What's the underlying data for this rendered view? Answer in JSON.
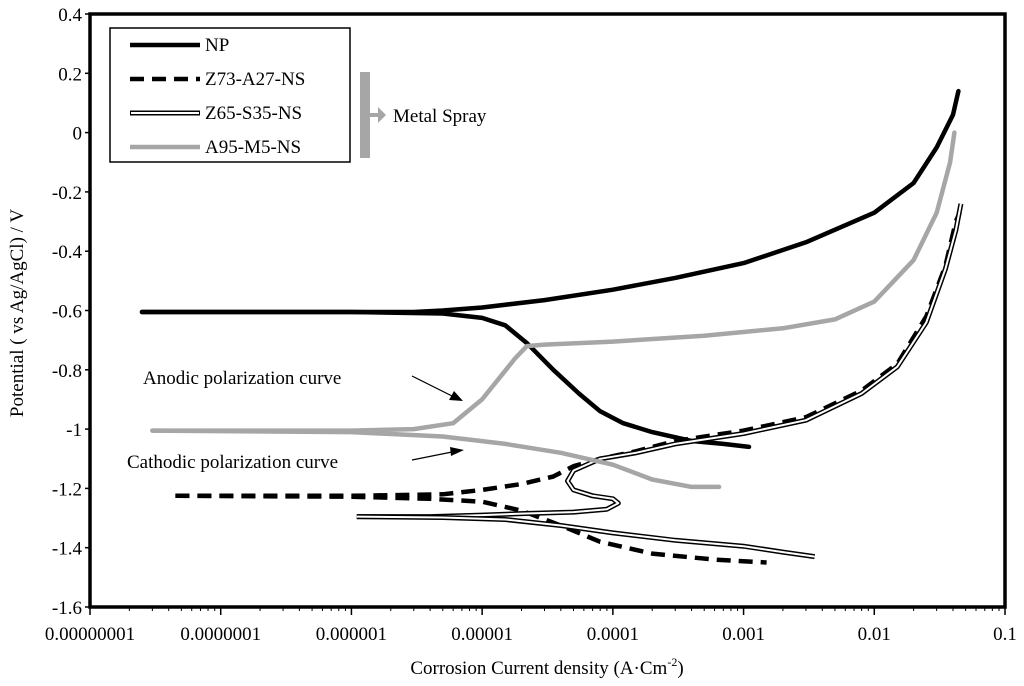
{
  "chart_data": {
    "type": "line",
    "xscale": "log",
    "xlabel": "Corrosion Current density (A·Cm",
    "xlabel_sup": "-2",
    "xlabel_close": ")",
    "ylabel": "Potential ( vs Ag/AgCl) / V",
    "xlim": [
      1e-08,
      0.1
    ],
    "ylim": [
      -1.6,
      0.4
    ],
    "x_ticks": [
      1e-08,
      1e-07,
      1e-06,
      1e-05,
      0.0001,
      0.001,
      0.01,
      0.1
    ],
    "x_tick_labels": [
      "0.00000001",
      "0.0000001",
      "0.000001",
      "0.00001",
      "0.0001",
      "0.001",
      "0.01",
      "0.1"
    ],
    "y_ticks": [
      0.4,
      0.2,
      0,
      -0.2,
      -0.4,
      -0.6,
      -0.8,
      -1,
      -1.2,
      -1.4,
      -1.6
    ],
    "y_tick_labels": [
      "0.4",
      "0.2",
      "0",
      "-0.2",
      "-0.4",
      "-0.6",
      "-0.8",
      "-1",
      "-1.2",
      "-1.4",
      "-1.6"
    ],
    "grid": false,
    "legend_position": "top-left",
    "series": [
      {
        "name": "NP",
        "color": "#000000",
        "style": "solid",
        "points": [
          [
            2.5e-08,
            -0.605
          ],
          [
            1e-07,
            -0.605
          ],
          [
            1e-06,
            -0.605
          ],
          [
            3e-06,
            -0.605
          ],
          [
            5e-06,
            -0.6
          ],
          [
            1e-05,
            -0.59
          ],
          [
            3e-05,
            -0.565
          ],
          [
            0.0001,
            -0.53
          ],
          [
            0.0003,
            -0.49
          ],
          [
            0.001,
            -0.44
          ],
          [
            0.003,
            -0.37
          ],
          [
            0.01,
            -0.27
          ],
          [
            0.02,
            -0.17
          ],
          [
            0.03,
            -0.05
          ],
          [
            0.04,
            0.06
          ],
          [
            0.044,
            0.14
          ]
        ],
        "points_b": [
          [
            2.5e-08,
            -0.605
          ],
          [
            1e-06,
            -0.605
          ],
          [
            5e-06,
            -0.61
          ],
          [
            1e-05,
            -0.625
          ],
          [
            1.5e-05,
            -0.65
          ],
          [
            2.2e-05,
            -0.71
          ],
          [
            3.5e-05,
            -0.8
          ],
          [
            5.5e-05,
            -0.88
          ],
          [
            8e-05,
            -0.94
          ],
          [
            0.00012,
            -0.98
          ],
          [
            0.0002,
            -1.01
          ],
          [
            0.0004,
            -1.04
          ],
          [
            0.0007,
            -1.05
          ],
          [
            0.0011,
            -1.06
          ]
        ]
      },
      {
        "name": "Z73-A27-NS",
        "color": "#000000",
        "style": "dashed",
        "points": [
          [
            4.5e-08,
            -1.225
          ],
          [
            1e-07,
            -1.225
          ],
          [
            1e-06,
            -1.225
          ],
          [
            5e-06,
            -1.22
          ],
          [
            1e-05,
            -1.205
          ],
          [
            2e-05,
            -1.185
          ],
          [
            3.5e-05,
            -1.16
          ],
          [
            5e-05,
            -1.125
          ],
          [
            8e-05,
            -1.1
          ],
          [
            0.00015,
            -1.075
          ],
          [
            0.0003,
            -1.04
          ],
          [
            0.001,
            -1.005
          ],
          [
            0.003,
            -0.96
          ],
          [
            0.008,
            -0.87
          ],
          [
            0.015,
            -0.78
          ],
          [
            0.025,
            -0.62
          ],
          [
            0.035,
            -0.45
          ],
          [
            0.042,
            -0.3
          ],
          [
            0.045,
            -0.27
          ]
        ],
        "points_b": [
          [
            4.5e-08,
            -1.225
          ],
          [
            1e-06,
            -1.228
          ],
          [
            4e-06,
            -1.235
          ],
          [
            1e-05,
            -1.245
          ],
          [
            2e-05,
            -1.275
          ],
          [
            4e-05,
            -1.325
          ],
          [
            8e-05,
            -1.38
          ],
          [
            0.0002,
            -1.42
          ],
          [
            0.0006,
            -1.44
          ],
          [
            0.0015,
            -1.45
          ]
        ]
      },
      {
        "name": "Z65-S35-NS",
        "color": "#000000",
        "style": "double",
        "points": [
          [
            1.1e-06,
            -1.295
          ],
          [
            4e-06,
            -1.295
          ],
          [
            1e-05,
            -1.29
          ],
          [
            2e-05,
            -1.285
          ],
          [
            5e-05,
            -1.28
          ],
          [
            9e-05,
            -1.27
          ],
          [
            0.00011,
            -1.25
          ],
          [
            0.0001,
            -1.235
          ],
          [
            7e-05,
            -1.225
          ],
          [
            5e-05,
            -1.205
          ],
          [
            4.5e-05,
            -1.175
          ],
          [
            5e-05,
            -1.14
          ],
          [
            8e-05,
            -1.1
          ],
          [
            0.00015,
            -1.08
          ],
          [
            0.0003,
            -1.05
          ],
          [
            0.001,
            -1.015
          ],
          [
            0.003,
            -0.97
          ],
          [
            0.008,
            -0.88
          ],
          [
            0.015,
            -0.79
          ],
          [
            0.025,
            -0.64
          ],
          [
            0.035,
            -0.46
          ],
          [
            0.042,
            -0.33
          ],
          [
            0.046,
            -0.24
          ]
        ],
        "points_b": [
          [
            1.1e-06,
            -1.295
          ],
          [
            5e-06,
            -1.298
          ],
          [
            1.5e-05,
            -1.305
          ],
          [
            4e-05,
            -1.325
          ],
          [
            0.0001,
            -1.35
          ],
          [
            0.0003,
            -1.375
          ],
          [
            0.001,
            -1.395
          ],
          [
            0.002,
            -1.415
          ],
          [
            0.0035,
            -1.43
          ]
        ]
      },
      {
        "name": "A95-M5-NS",
        "color": "#a6a6a6",
        "style": "solid",
        "points": [
          [
            3e-08,
            -1.005
          ],
          [
            1e-07,
            -1.005
          ],
          [
            1e-06,
            -1.005
          ],
          [
            3e-06,
            -1.0
          ],
          [
            6e-06,
            -0.98
          ],
          [
            1e-05,
            -0.9
          ],
          [
            1.4e-05,
            -0.82
          ],
          [
            1.8e-05,
            -0.76
          ],
          [
            2.2e-05,
            -0.72
          ],
          [
            3e-05,
            -0.715
          ],
          [
            0.0001,
            -0.705
          ],
          [
            0.0005,
            -0.685
          ],
          [
            0.002,
            -0.66
          ],
          [
            0.005,
            -0.63
          ],
          [
            0.01,
            -0.57
          ],
          [
            0.02,
            -0.43
          ],
          [
            0.03,
            -0.27
          ],
          [
            0.038,
            -0.1
          ],
          [
            0.041,
            0.0
          ]
        ],
        "points_b": [
          [
            3e-08,
            -1.005
          ],
          [
            1e-06,
            -1.01
          ],
          [
            5e-06,
            -1.025
          ],
          [
            1.5e-05,
            -1.05
          ],
          [
            4e-05,
            -1.08
          ],
          [
            0.0001,
            -1.12
          ],
          [
            0.0002,
            -1.17
          ],
          [
            0.0004,
            -1.195
          ],
          [
            0.00065,
            -1.195
          ]
        ]
      }
    ],
    "legend_group_label": "Metal Spray",
    "annotations": [
      {
        "text": "Anodic polarization curve",
        "points_to": [
          1.4e-05,
          -0.905
        ]
      },
      {
        "text": "Cathodic polarization curve",
        "points_to": [
          1.4e-05,
          -1.07
        ]
      }
    ]
  }
}
